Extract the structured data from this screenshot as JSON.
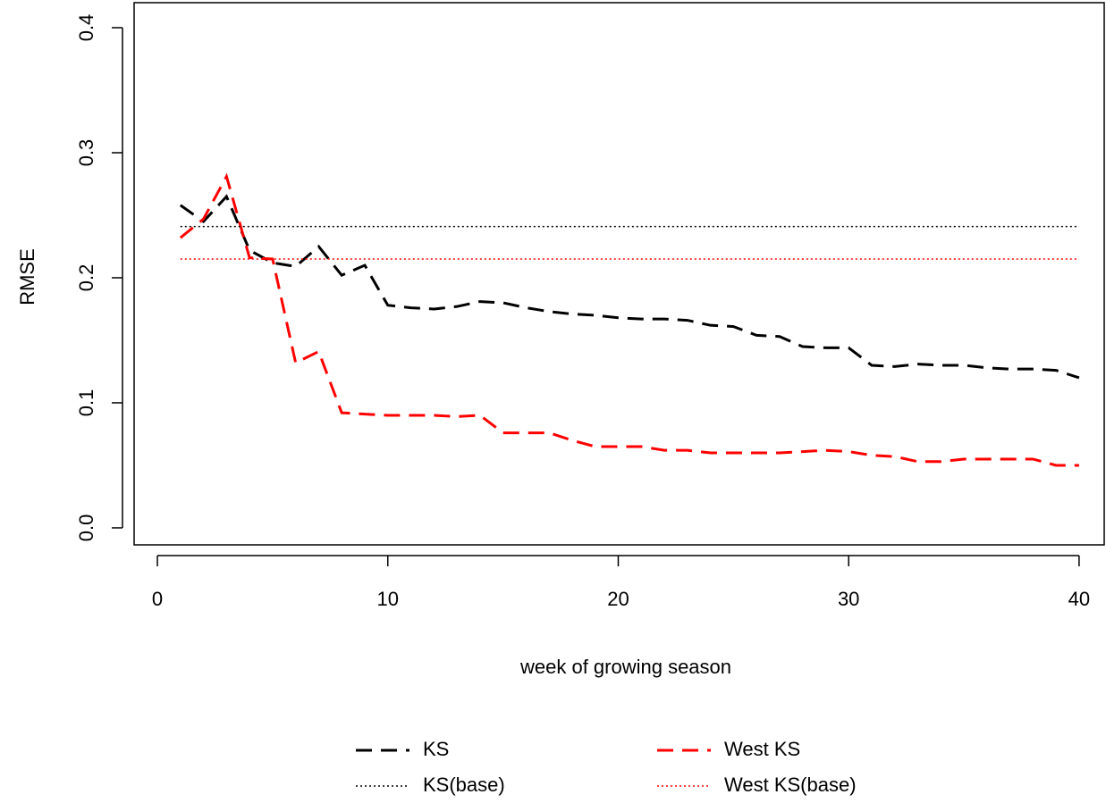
{
  "chart_data": {
    "type": "line",
    "xlabel": "week of growing season",
    "ylabel": "RMSE",
    "x": [
      1,
      2,
      3,
      4,
      5,
      6,
      7,
      8,
      9,
      10,
      11,
      12,
      13,
      14,
      15,
      16,
      17,
      18,
      19,
      20,
      21,
      22,
      23,
      24,
      25,
      26,
      27,
      28,
      29,
      30,
      31,
      32,
      33,
      34,
      35,
      36,
      37,
      38,
      39,
      40
    ],
    "series": [
      {
        "name": "KS",
        "color": "#000000",
        "style": "dashed",
        "values": [
          0.258,
          0.245,
          0.265,
          0.222,
          0.212,
          0.209,
          0.225,
          0.202,
          0.21,
          0.178,
          0.176,
          0.175,
          0.177,
          0.181,
          0.18,
          0.176,
          0.173,
          0.171,
          0.17,
          0.168,
          0.167,
          0.167,
          0.166,
          0.162,
          0.161,
          0.154,
          0.153,
          0.145,
          0.144,
          0.144,
          0.13,
          0.129,
          0.131,
          0.13,
          0.13,
          0.128,
          0.127,
          0.127,
          0.126,
          0.12
        ]
      },
      {
        "name": "West KS",
        "color": "#ff0000",
        "style": "dashed",
        "values": [
          0.232,
          0.247,
          0.281,
          0.216,
          0.215,
          0.132,
          0.141,
          0.092,
          0.091,
          0.09,
          0.09,
          0.09,
          0.089,
          0.09,
          0.076,
          0.076,
          0.076,
          0.07,
          0.065,
          0.065,
          0.065,
          0.062,
          0.062,
          0.06,
          0.06,
          0.06,
          0.06,
          0.061,
          0.062,
          0.061,
          0.058,
          0.057,
          0.053,
          0.053,
          0.055,
          0.055,
          0.055,
          0.055,
          0.05,
          0.05
        ]
      },
      {
        "name": "KS(base)",
        "color": "#000000",
        "style": "dotted",
        "hline": 0.241
      },
      {
        "name": "West KS(base)",
        "color": "#ff0000",
        "style": "dotted",
        "hline": 0.215
      }
    ],
    "xlim": [
      -1.01,
      41.09
    ],
    "ylim": [
      -0.0136,
      0.42
    ],
    "xticks": [
      0,
      10,
      20,
      30,
      40
    ],
    "yticks": [
      {
        "value": 0,
        "label": "0.0"
      },
      0.1,
      0.2,
      0.3,
      0.4
    ]
  }
}
